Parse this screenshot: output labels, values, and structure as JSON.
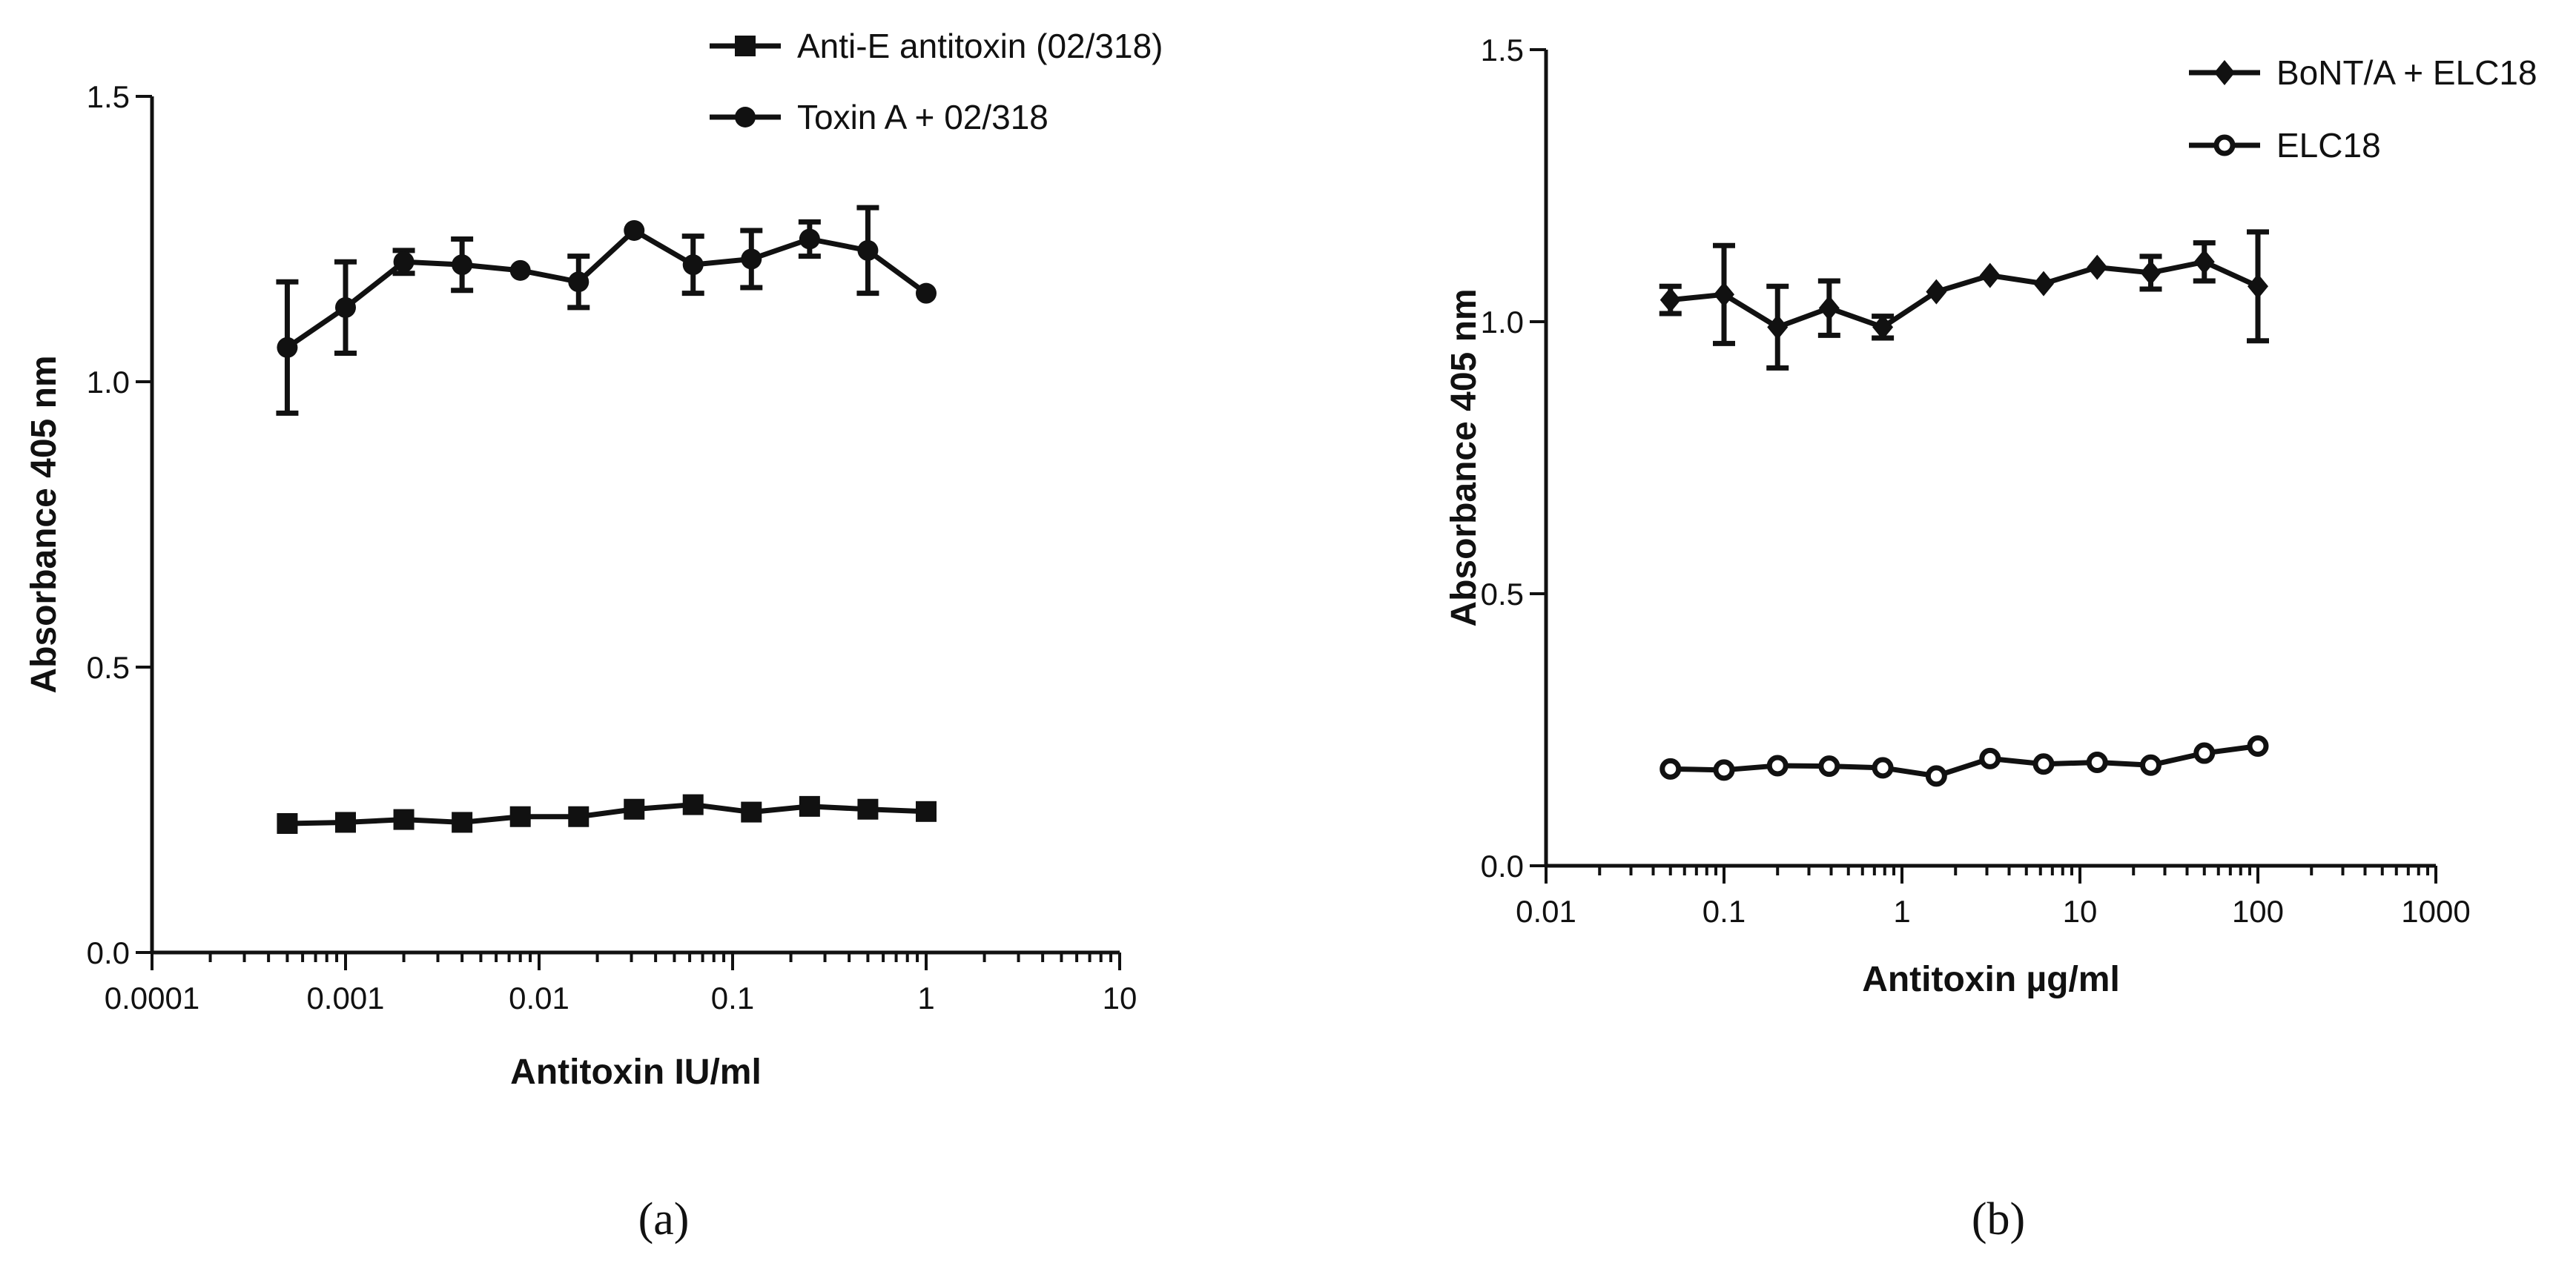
{
  "chart_data": [
    {
      "type": "line",
      "panel_label": "(a)",
      "xlabel": "Antitoxin IU/ml",
      "ylabel": "Absorbance 405 nm",
      "x_scale": "log",
      "xlim": [
        0.0001,
        10
      ],
      "ylim": [
        0.0,
        1.5
      ],
      "xticks": [
        "0.0001",
        "0.001",
        "0.01",
        "0.1",
        "1",
        "10"
      ],
      "yticks": [
        "0.0",
        "0.5",
        "1.0",
        "1.5"
      ],
      "grid": false,
      "legend_position": "top-right",
      "series": [
        {
          "name": "Anti-E antitoxin (02/318)",
          "marker": "square",
          "x": [
            0.0005,
            0.001,
            0.002,
            0.004,
            0.008,
            0.016,
            0.031,
            0.0625,
            0.125,
            0.25,
            0.5,
            1
          ],
          "y": [
            0.226,
            0.228,
            0.233,
            0.228,
            0.238,
            0.238,
            0.251,
            0.259,
            0.246,
            0.256,
            0.251,
            0.247
          ],
          "err": []
        },
        {
          "name": "Toxin A + 02/318",
          "marker": "circle",
          "x": [
            0.0005,
            0.001,
            0.002,
            0.004,
            0.008,
            0.016,
            0.031,
            0.0625,
            0.125,
            0.25,
            0.5,
            1
          ],
          "y": [
            1.06,
            1.13,
            1.21,
            1.205,
            1.195,
            1.175,
            1.265,
            1.205,
            1.215,
            1.25,
            1.23,
            1.155
          ],
          "err": [
            0.115,
            0.08,
            0.02,
            0.045,
            0.0,
            0.045,
            0.0,
            0.05,
            0.05,
            0.03,
            0.075,
            0.0
          ]
        }
      ]
    },
    {
      "type": "line",
      "panel_label": "(b)",
      "xlabel": "Antitoxin µg/ml",
      "ylabel": "Absorbance 405 nm",
      "x_scale": "log",
      "xlim": [
        0.01,
        1000
      ],
      "ylim": [
        0.0,
        1.5
      ],
      "xticks": [
        "0.01",
        "0.1",
        "1",
        "10",
        "100",
        "1000"
      ],
      "yticks": [
        "0.0",
        "0.5",
        "1.0",
        "1.5"
      ],
      "grid": false,
      "legend_position": "top-right",
      "series": [
        {
          "name": "BoNT/A + ELC18",
          "marker": "diamond",
          "x": [
            0.05,
            0.1,
            0.2,
            0.39,
            0.78,
            1.56,
            3.125,
            6.25,
            12.5,
            25,
            50,
            100
          ],
          "y": [
            1.04,
            1.05,
            0.99,
            1.025,
            0.99,
            1.055,
            1.085,
            1.07,
            1.1,
            1.09,
            1.11,
            1.065
          ],
          "err": [
            0.025,
            0.09,
            0.075,
            0.05,
            0.02,
            0.0,
            0.0,
            0.0,
            0.0,
            0.03,
            0.035,
            0.1
          ]
        },
        {
          "name": "ELC18",
          "marker": "open-circle",
          "x": [
            0.05,
            0.1,
            0.2,
            0.39,
            0.78,
            1.56,
            3.125,
            6.25,
            12.5,
            25,
            50,
            100
          ],
          "y": [
            0.178,
            0.176,
            0.184,
            0.183,
            0.18,
            0.165,
            0.197,
            0.187,
            0.19,
            0.185,
            0.207,
            0.22
          ],
          "err": []
        }
      ]
    }
  ]
}
